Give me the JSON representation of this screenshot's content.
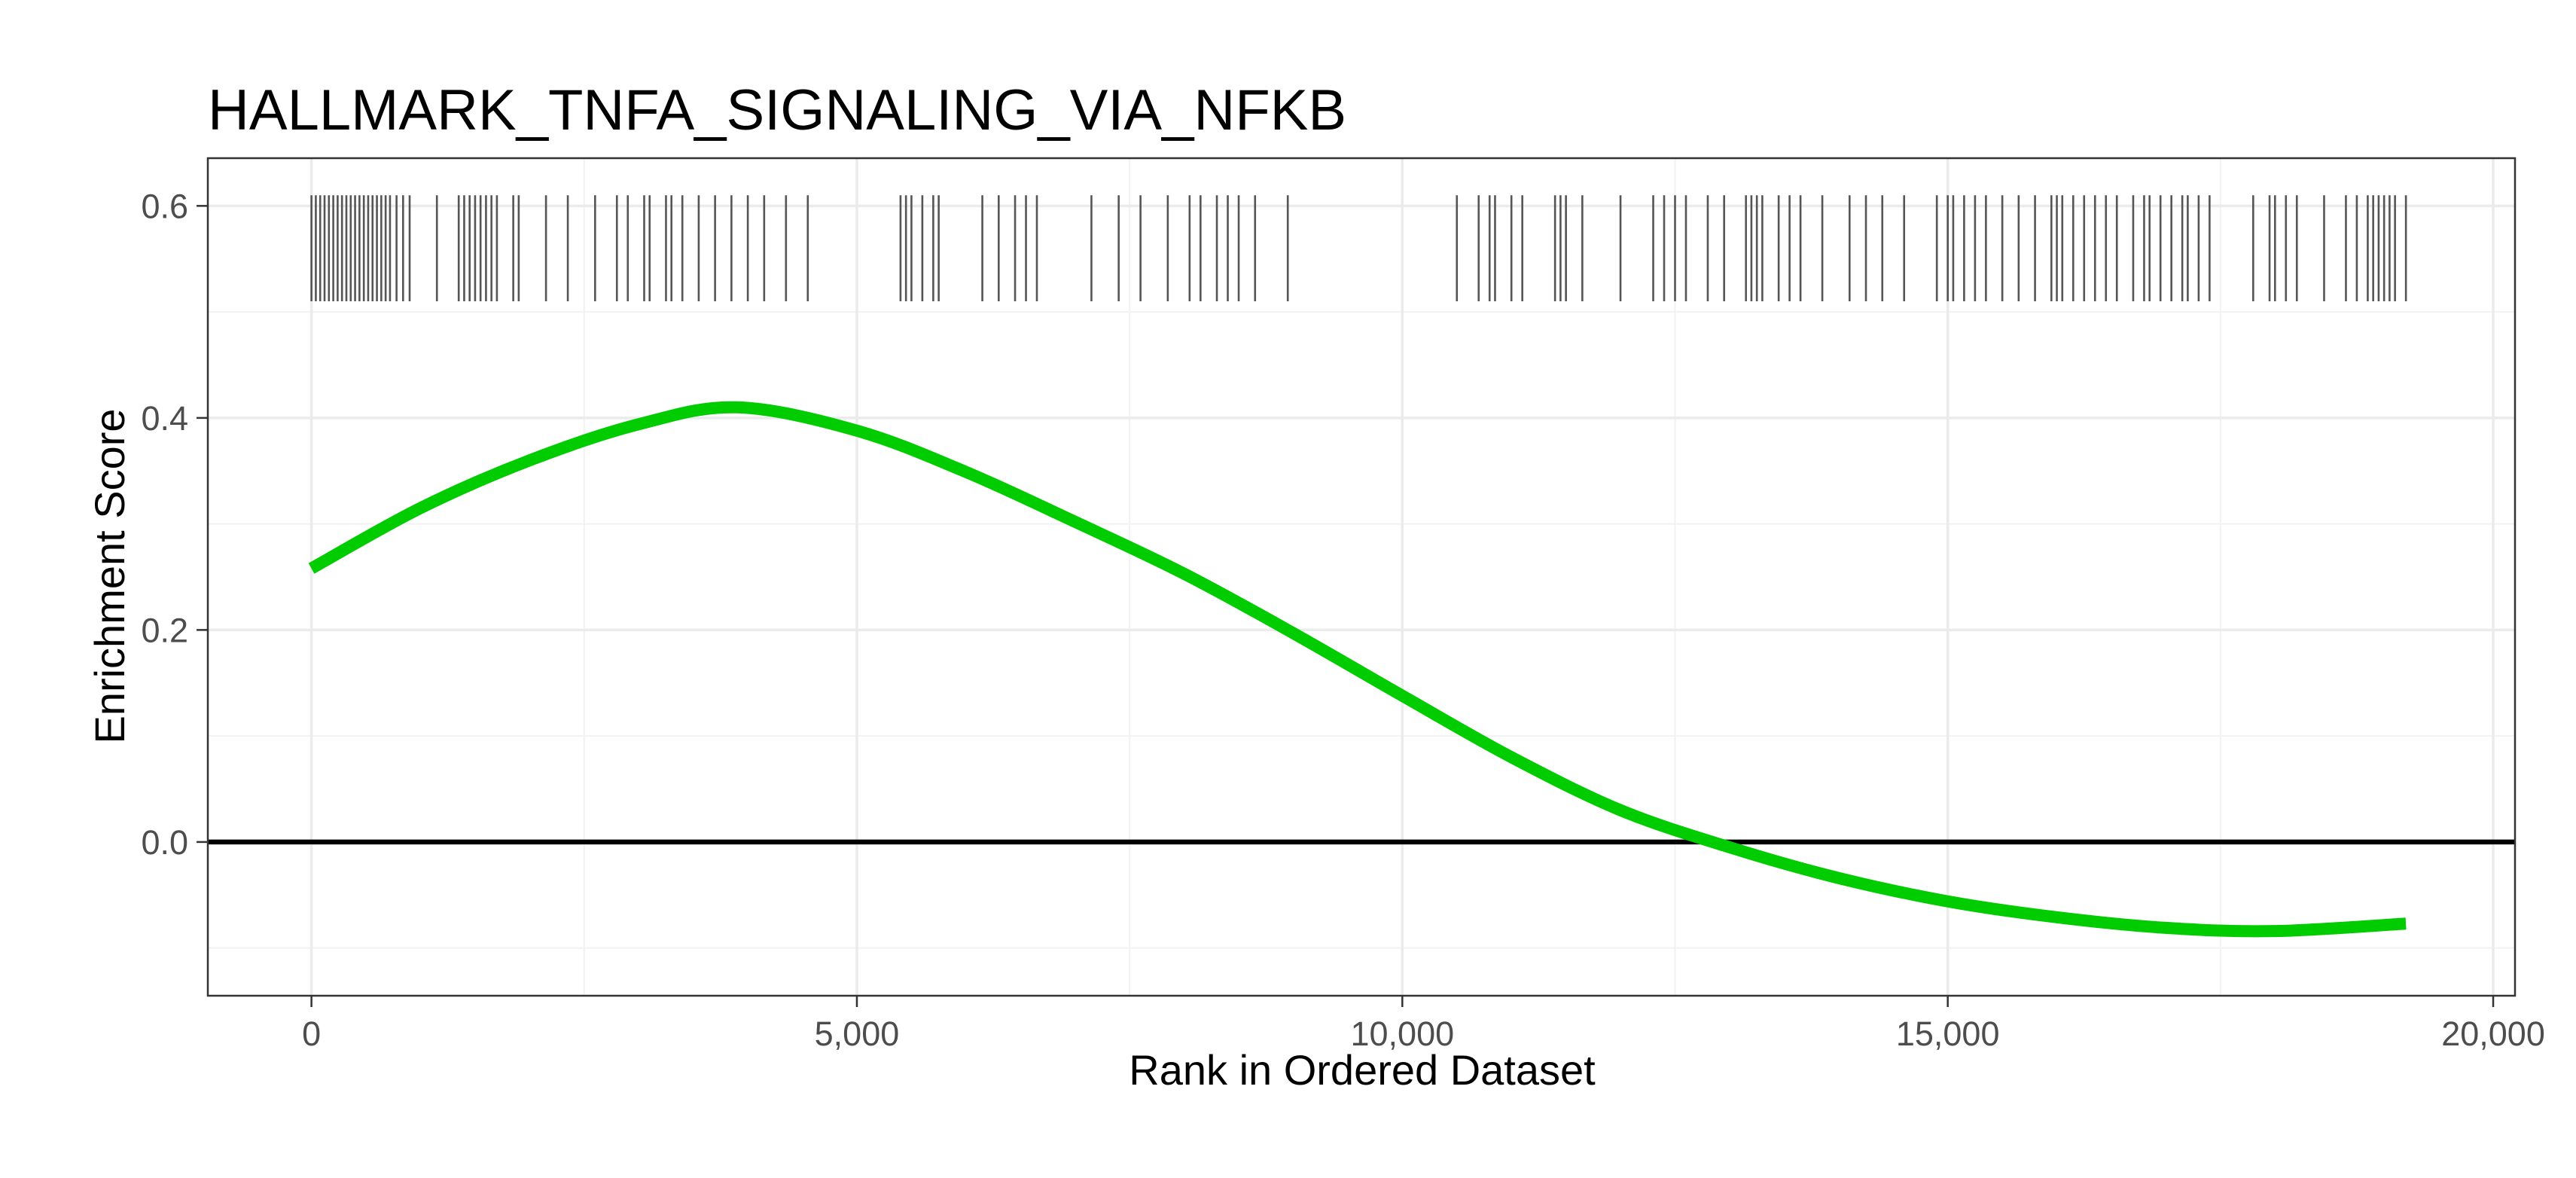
{
  "chart_data": {
    "type": "line",
    "title": "HALLMARK_TNFA_SIGNALING_VIA_NFKB",
    "xlabel": "Rank in Ordered Dataset",
    "ylabel": "Enrichment Score",
    "xlim": [
      -950,
      20200
    ],
    "ylim": [
      -0.145,
      0.645
    ],
    "x_ticks": [
      0,
      5000,
      10000,
      15000,
      20000
    ],
    "x_tick_labels": [
      "0",
      "5,000",
      "10,000",
      "15,000",
      "20,000"
    ],
    "y_ticks": [
      0.0,
      0.2,
      0.4,
      0.6
    ],
    "y_tick_labels": [
      "0.0",
      "0.2",
      "0.4",
      "0.6"
    ],
    "grid": true,
    "legend": "none",
    "colors": {
      "curve": "#00cc00",
      "hits": "#555555",
      "zero_line": "#000000"
    },
    "reference_line_y": 0.0,
    "hit_band_y": [
      0.51,
      0.61
    ],
    "series": [
      {
        "x": [
          0,
          1000,
          2000,
          3000,
          3900,
          5000,
          6000,
          7000,
          8000,
          9000,
          10000,
          11000,
          12000,
          13000,
          14000,
          15000,
          16000,
          17000,
          18000,
          19200
        ],
        "values": [
          0.258,
          0.315,
          0.36,
          0.394,
          0.41,
          0.388,
          0.349,
          0.302,
          0.253,
          0.197,
          0.138,
          0.08,
          0.03,
          -0.005,
          -0.034,
          -0.056,
          -0.071,
          -0.081,
          -0.084,
          -0.077
        ]
      }
    ],
    "hits": [
      0,
      40,
      80,
      120,
      160,
      200,
      240,
      280,
      320,
      360,
      400,
      440,
      480,
      520,
      560,
      600,
      640,
      680,
      720,
      780,
      840,
      900,
      1150,
      1350,
      1400,
      1450,
      1500,
      1550,
      1600,
      1650,
      1700,
      1850,
      1900,
      2150,
      2350,
      2600,
      2800,
      2900,
      3050,
      3100,
      3250,
      3300,
      3400,
      3550,
      3700,
      3850,
      4000,
      4150,
      4350,
      4550,
      5400,
      5450,
      5500,
      5600,
      5700,
      5750,
      6150,
      6300,
      6450,
      6550,
      6650,
      7150,
      7400,
      7600,
      7850,
      8050,
      8150,
      8300,
      8400,
      8500,
      8650,
      8950,
      10500,
      10700,
      10800,
      10850,
      11000,
      11100,
      11400,
      11450,
      11500,
      11650,
      12000,
      12300,
      12400,
      12500,
      12600,
      12800,
      12950,
      13150,
      13200,
      13250,
      13300,
      13450,
      13550,
      13650,
      13850,
      14100,
      14250,
      14400,
      14600,
      14900,
      15000,
      15050,
      15150,
      15250,
      15350,
      15500,
      15650,
      15800,
      15950,
      16000,
      16050,
      16150,
      16250,
      16350,
      16450,
      16550,
      16700,
      16800,
      16850,
      16950,
      17050,
      17150,
      17200,
      17300,
      17400,
      17800,
      17950,
      18000,
      18100,
      18200,
      18450,
      18650,
      18750,
      18850,
      18900,
      18950,
      19000,
      19050,
      19100,
      19200
    ]
  }
}
